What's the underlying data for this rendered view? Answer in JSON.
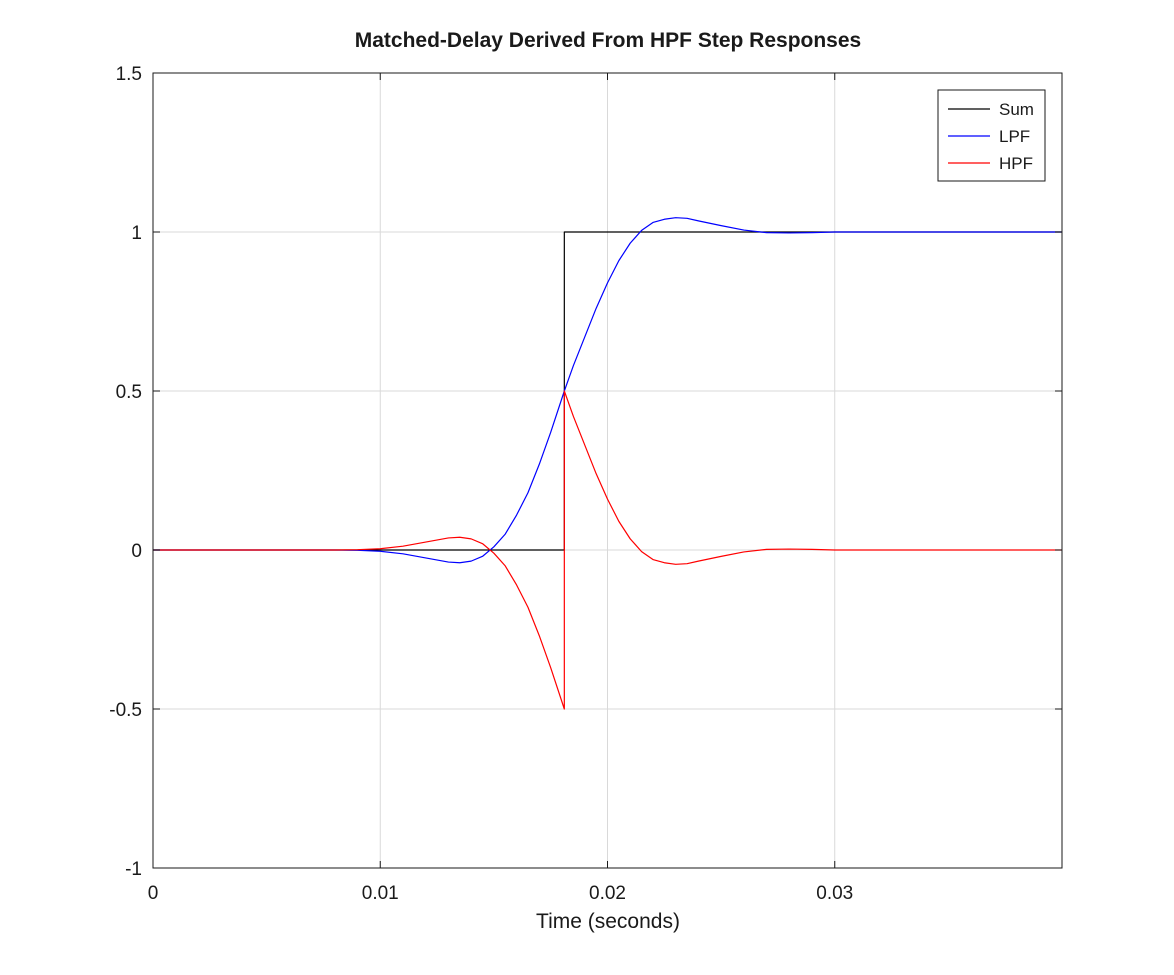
{
  "chart_data": {
    "type": "line",
    "title": "Matched-Delay Derived From HPF Step Responses",
    "xlabel": "Time (seconds)",
    "ylabel": "",
    "xlim": [
      0,
      0.04
    ],
    "ylim": [
      -1,
      1.5
    ],
    "xticks": [
      0,
      0.01,
      0.02,
      0.03
    ],
    "xtick_labels": [
      "0",
      "0.01",
      "0.02",
      "0.03"
    ],
    "yticks": [
      -1,
      -0.5,
      0,
      0.5,
      1,
      1.5
    ],
    "ytick_labels": [
      "-1",
      "-0.5",
      "0",
      "0.5",
      "1",
      "1.5"
    ],
    "grid": true,
    "legend_position": "top-right",
    "series": [
      {
        "name": "Sum",
        "color": "#000000",
        "x": [
          0,
          0.0181,
          0.0181,
          0.04
        ],
        "y": [
          0,
          0,
          1,
          1
        ]
      },
      {
        "name": "LPF",
        "color": "#0000ff",
        "x": [
          0,
          0.005,
          0.008,
          0.009,
          0.01,
          0.011,
          0.012,
          0.013,
          0.0135,
          0.014,
          0.0145,
          0.015,
          0.0155,
          0.016,
          0.0165,
          0.017,
          0.0175,
          0.0181,
          0.0185,
          0.019,
          0.0195,
          0.02,
          0.0205,
          0.021,
          0.0215,
          0.022,
          0.0225,
          0.023,
          0.0235,
          0.024,
          0.025,
          0.026,
          0.027,
          0.028,
          0.029,
          0.03,
          0.032,
          0.035,
          0.04
        ],
        "y": [
          0,
          0,
          0,
          -0.001,
          -0.004,
          -0.012,
          -0.025,
          -0.038,
          -0.04,
          -0.035,
          -0.02,
          0.01,
          0.05,
          0.11,
          0.18,
          0.27,
          0.37,
          0.5,
          0.58,
          0.67,
          0.76,
          0.84,
          0.91,
          0.965,
          1.005,
          1.03,
          1.04,
          1.045,
          1.043,
          1.035,
          1.02,
          1.006,
          0.998,
          0.997,
          0.998,
          1.0,
          1.0,
          1.0,
          1.0
        ]
      },
      {
        "name": "HPF",
        "color": "#ff0000",
        "x": [
          0,
          0.005,
          0.008,
          0.009,
          0.01,
          0.011,
          0.012,
          0.013,
          0.0135,
          0.014,
          0.0145,
          0.015,
          0.0155,
          0.016,
          0.0165,
          0.017,
          0.0175,
          0.0181,
          0.0181,
          0.0185,
          0.019,
          0.0195,
          0.02,
          0.0205,
          0.021,
          0.0215,
          0.022,
          0.0225,
          0.023,
          0.0235,
          0.024,
          0.025,
          0.026,
          0.027,
          0.028,
          0.029,
          0.03,
          0.032,
          0.035,
          0.04
        ],
        "y": [
          0,
          0,
          0,
          0.001,
          0.004,
          0.012,
          0.025,
          0.038,
          0.04,
          0.035,
          0.02,
          -0.01,
          -0.05,
          -0.11,
          -0.18,
          -0.27,
          -0.37,
          -0.5,
          0.5,
          0.42,
          0.33,
          0.24,
          0.16,
          0.09,
          0.035,
          -0.005,
          -0.03,
          -0.04,
          -0.045,
          -0.043,
          -0.035,
          -0.02,
          -0.006,
          0.002,
          0.003,
          0.002,
          0.0,
          0.0,
          0.0,
          0.0
        ]
      }
    ]
  }
}
